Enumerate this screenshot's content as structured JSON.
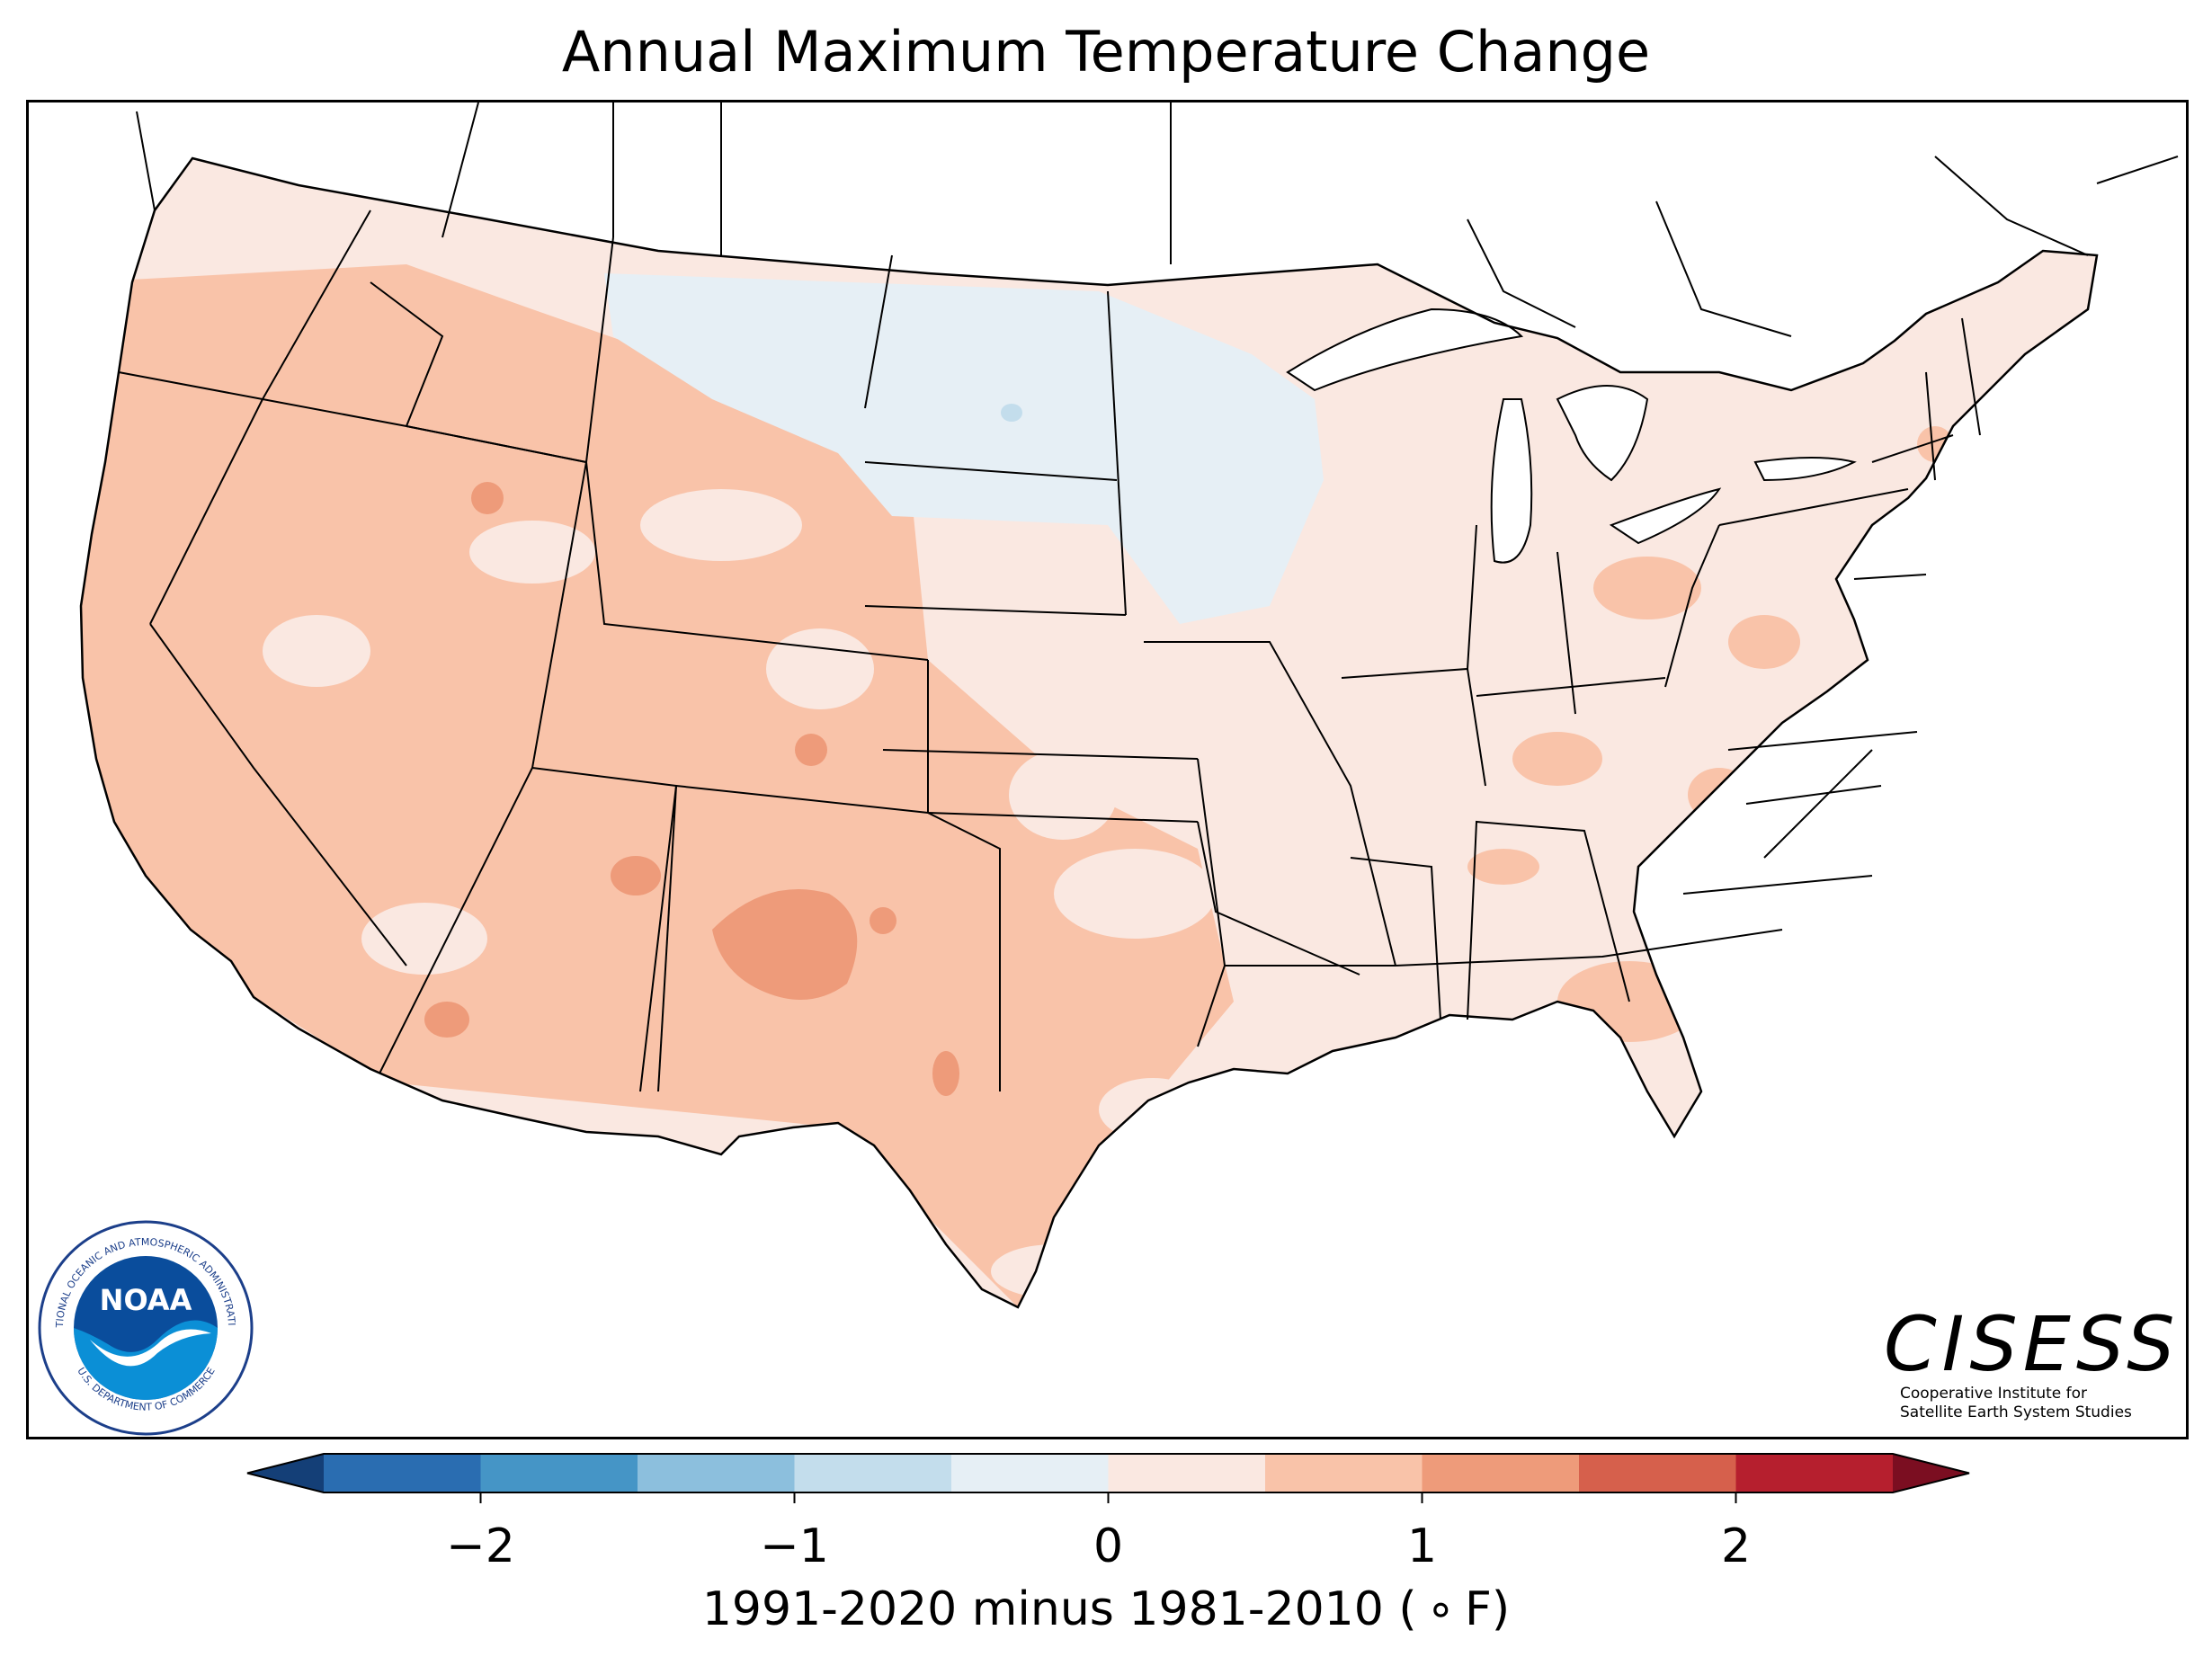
{
  "title": "Annual Maximum Temperature Change",
  "colorbar": {
    "label": "1991-2020 minus 1981-2010 ( ∘ F)",
    "ticks": [
      "−2",
      "−1",
      "0",
      "1",
      "2"
    ],
    "tick_values": [
      -2,
      -1,
      0,
      1,
      2
    ],
    "range": [
      -2.5,
      2.5
    ],
    "bin_width": 0.5,
    "extend": "both",
    "colors": [
      "#2a6db1",
      "#4595c6",
      "#8cbfdd",
      "#c3ddec",
      "#e6eff5",
      "#fae8e1",
      "#f9c3a9",
      "#ee9b7a",
      "#d6604c",
      "#b61f2e"
    ],
    "under_color": "#143f77",
    "over_color": "#7b0e21"
  },
  "legend_scale": "degrees Fahrenheit",
  "map_colors": {
    "slight_warm": "#fae8e1",
    "warm": "#f9c3a9",
    "warmer": "#ee9b7a",
    "slight_cool": "#e6eff5",
    "cool": "#c3ddec"
  },
  "noaa_logo": {
    "center_text": "NOAA",
    "ring_text_top": "NATIONAL OCEANIC AND ATMOSPHERIC ADMINISTRATION",
    "ring_text_bottom": "U.S. DEPARTMENT OF COMMERCE"
  },
  "cisess": {
    "name": "CISESS",
    "line1": "Cooperative Institute for",
    "line2": "Satellite Earth System Studies"
  }
}
